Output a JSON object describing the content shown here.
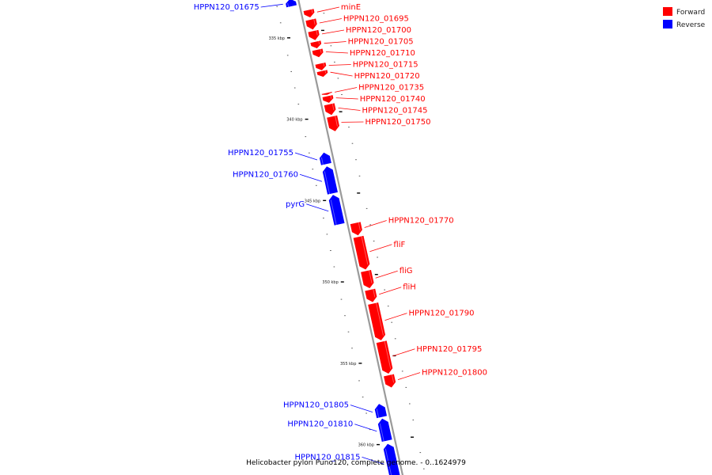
{
  "caption": "Helicobacter pylori Puno120, complete genome. - 0..1624979",
  "colors": {
    "forward": "#ff0000",
    "reverse": "#0000ff",
    "backbone": "#9a9a9a"
  },
  "legend": {
    "forward": "Forward",
    "reverse": "Reverse"
  },
  "map": {
    "start_bp": 333000,
    "end_bp": 362000
  },
  "ticks": [
    {
      "bp": 335000,
      "label": "335 kbp"
    },
    {
      "bp": 340000,
      "label": "340 kbp"
    },
    {
      "bp": 345000,
      "label": "345 kbp"
    },
    {
      "bp": 350000,
      "label": "350 kbp"
    },
    {
      "bp": 355000,
      "label": "355 kbp"
    },
    {
      "bp": 360000,
      "label": "360 kbp"
    }
  ],
  "genes": [
    {
      "name": "HPPN120_01675",
      "strand": "reverse",
      "start": 332700,
      "end": 333200
    },
    {
      "name": "minE",
      "strand": "forward",
      "start": 333600,
      "end": 334100
    },
    {
      "name": "HPPN120_01695",
      "strand": "forward",
      "start": 334200,
      "end": 334850
    },
    {
      "name": "HPPN120_01700",
      "strand": "forward",
      "start": 334900,
      "end": 335500
    },
    {
      "name": "HPPN120_01705",
      "strand": "forward",
      "start": 335550,
      "end": 336000
    },
    {
      "name": "HPPN120_01710",
      "strand": "forward",
      "start": 336050,
      "end": 336550
    },
    {
      "name": "HPPN120_01715",
      "strand": "forward",
      "start": 336900,
      "end": 337350
    },
    {
      "name": "HPPN120_01720",
      "strand": "forward",
      "start": 337350,
      "end": 337750
    },
    {
      "name": "HPPN120_01735",
      "strand": "forward",
      "start": 338700,
      "end": 338850
    },
    {
      "name": "HPPN120_01740",
      "strand": "forward",
      "start": 338900,
      "end": 339350
    },
    {
      "name": "HPPN120_01745",
      "strand": "forward",
      "start": 339400,
      "end": 340100
    },
    {
      "name": "HPPN120_01750",
      "strand": "forward",
      "start": 340150,
      "end": 341100
    },
    {
      "name": "HPPN120_01755",
      "strand": "reverse",
      "start": 342150,
      "end": 342900
    },
    {
      "name": "HPPN120_01760",
      "strand": "reverse",
      "start": 343000,
      "end": 344700
    },
    {
      "name": "pyrG",
      "strand": "reverse",
      "start": 344750,
      "end": 346600
    },
    {
      "name": "HPPN120_01770",
      "strand": "forward",
      "start": 346700,
      "end": 347500
    },
    {
      "name": "fliF",
      "strand": "forward",
      "start": 347550,
      "end": 349600
    },
    {
      "name": "fliG",
      "strand": "forward",
      "start": 349650,
      "end": 350750
    },
    {
      "name": "fliH",
      "strand": "forward",
      "start": 350800,
      "end": 351600
    },
    {
      "name": "HPPN120_01790",
      "strand": "forward",
      "start": 351650,
      "end": 353950
    },
    {
      "name": "HPPN120_01795",
      "strand": "forward",
      "start": 354000,
      "end": 356000
    },
    {
      "name": "HPPN120_01800",
      "strand": "forward",
      "start": 356050,
      "end": 356850
    },
    {
      "name": "HPPN120_01805",
      "strand": "reverse",
      "start": 357600,
      "end": 358450
    },
    {
      "name": "HPPN120_01810",
      "strand": "reverse",
      "start": 358500,
      "end": 359900
    },
    {
      "name": "HPPN120_01815",
      "strand": "reverse",
      "start": 360050,
      "end": 362400
    }
  ]
}
